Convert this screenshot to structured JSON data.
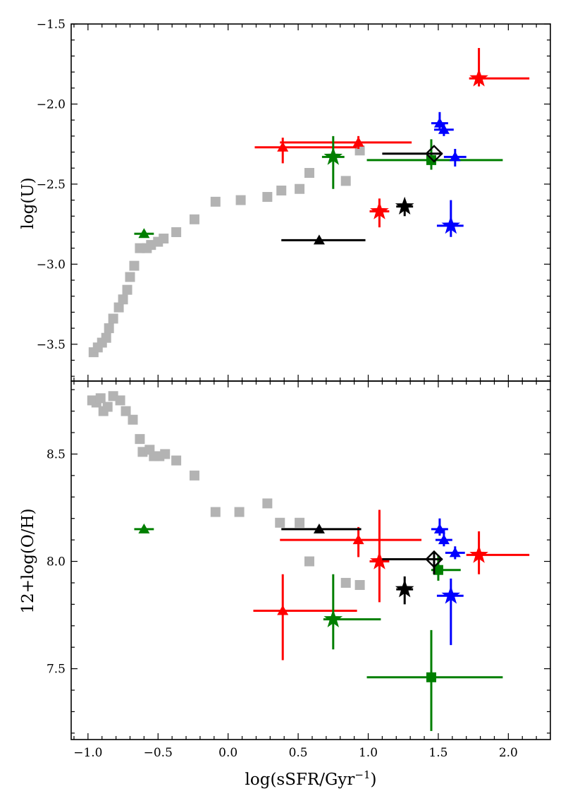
{
  "chart_data": [
    {
      "type": "scatter",
      "panel": "top",
      "title": "",
      "xlabel": "log(sSFR/Gyr^{-1})",
      "ylabel": "log(U)",
      "xlim": [
        -1.12,
        2.3
      ],
      "ylim": [
        -3.73,
        -1.5
      ],
      "x_ticks": [
        -1.0,
        -0.5,
        0.0,
        0.5,
        1.0,
        1.5,
        2.0
      ],
      "y_ticks": [
        -3.5,
        -3.0,
        -2.5,
        -2.0,
        -1.5
      ],
      "y_tick_labels": [
        "−3.5",
        "−3.0",
        "−2.5",
        "−2.0",
        "−1.5"
      ],
      "grid": false,
      "series": [
        {
          "name": "grey track",
          "color": "#b3b3b3",
          "marker": "square",
          "points": [
            {
              "x": -0.96,
              "y": -3.55
            },
            {
              "x": -0.93,
              "y": -3.52
            },
            {
              "x": -0.9,
              "y": -3.49
            },
            {
              "x": -0.87,
              "y": -3.46
            },
            {
              "x": -0.85,
              "y": -3.4
            },
            {
              "x": -0.82,
              "y": -3.34
            },
            {
              "x": -0.78,
              "y": -3.27
            },
            {
              "x": -0.75,
              "y": -3.22
            },
            {
              "x": -0.72,
              "y": -3.16
            },
            {
              "x": -0.7,
              "y": -3.08
            },
            {
              "x": -0.67,
              "y": -3.01
            },
            {
              "x": -0.63,
              "y": -2.9
            },
            {
              "x": -0.58,
              "y": -2.9
            },
            {
              "x": -0.55,
              "y": -2.88
            },
            {
              "x": -0.5,
              "y": -2.86
            },
            {
              "x": -0.46,
              "y": -2.84
            },
            {
              "x": -0.37,
              "y": -2.8
            },
            {
              "x": -0.24,
              "y": -2.72
            },
            {
              "x": -0.09,
              "y": -2.61
            },
            {
              "x": 0.09,
              "y": -2.6
            },
            {
              "x": 0.28,
              "y": -2.58
            },
            {
              "x": 0.38,
              "y": -2.54
            },
            {
              "x": 0.51,
              "y": -2.53
            },
            {
              "x": 0.58,
              "y": -2.43
            },
            {
              "x": 0.84,
              "y": -2.48
            },
            {
              "x": 0.94,
              "y": -2.29
            }
          ]
        },
        {
          "name": "red",
          "color": "#ff0000",
          "points": [
            {
              "marker": "triangle",
              "x": 0.39,
              "y": -2.27,
              "xerr": [
                0.2,
                0.53
              ],
              "yerr": [
                0.1,
                0.06
              ]
            },
            {
              "marker": "triangle",
              "x": 0.93,
              "y": -2.24,
              "xerr": [
                0.56,
                0.38
              ],
              "yerr": [
                0.04,
                0.04
              ]
            },
            {
              "marker": "star",
              "x": 1.08,
              "y": -2.67,
              "xerr": [
                0.07,
                0.07
              ],
              "yerr": [
                0.1,
                0.08
              ]
            },
            {
              "marker": "star",
              "x": 1.79,
              "y": -1.84,
              "xerr": [
                0.07,
                0.36
              ],
              "yerr": [
                0.05,
                0.19
              ]
            }
          ]
        },
        {
          "name": "green",
          "color": "#007f00",
          "points": [
            {
              "marker": "triangle",
              "x": -0.6,
              "y": -2.81,
              "xerr": [
                0.07,
                0.07
              ],
              "yerr": [
                0.0,
                0.0
              ]
            },
            {
              "marker": "star",
              "x": 0.75,
              "y": -2.33,
              "xerr": [
                0.08,
                0.08
              ],
              "yerr": [
                0.2,
                0.13
              ]
            },
            {
              "marker": "square",
              "x": 1.45,
              "y": -2.35,
              "xerr": [
                0.46,
                0.51
              ],
              "yerr": [
                0.06,
                0.13
              ]
            }
          ]
        },
        {
          "name": "blue",
          "color": "#0000ff",
          "points": [
            {
              "marker": "triangle",
              "x": 1.51,
              "y": -2.12,
              "xerr": [
                0.06,
                0.06
              ],
              "yerr": [
                0.04,
                0.07
              ]
            },
            {
              "marker": "triangle",
              "x": 1.54,
              "y": -2.16,
              "xerr": [
                0.07,
                0.07
              ],
              "yerr": [
                0.04,
                0.04
              ]
            },
            {
              "marker": "triangle",
              "x": 1.62,
              "y": -2.33,
              "xerr": [
                0.08,
                0.08
              ],
              "yerr": [
                0.06,
                0.05
              ]
            },
            {
              "marker": "star",
              "x": 1.59,
              "y": -2.76,
              "xerr": [
                0.1,
                0.09
              ],
              "yerr": [
                0.07,
                0.16
              ]
            }
          ]
        },
        {
          "name": "black",
          "color": "#000000",
          "points": [
            {
              "marker": "triangle",
              "x": 0.65,
              "y": -2.85,
              "xerr": [
                0.27,
                0.33
              ],
              "yerr": [
                0.0,
                0.0
              ]
            },
            {
              "marker": "star",
              "x": 1.26,
              "y": -2.64,
              "xerr": [
                0.06,
                0.06
              ],
              "yerr": [
                0.06,
                0.04
              ]
            },
            {
              "marker": "diamond-open",
              "x": 1.47,
              "y": -2.31,
              "xerr": [
                0.37,
                0.06
              ],
              "yerr": [
                0.0,
                0.0
              ]
            }
          ]
        }
      ]
    },
    {
      "type": "scatter",
      "panel": "bottom",
      "title": "",
      "xlabel": "log(sSFR/Gyr^{-1})",
      "ylabel": "12+log(O/H)",
      "xlim": [
        -1.12,
        2.3
      ],
      "ylim": [
        7.17,
        8.84
      ],
      "x_ticks": [
        -1.0,
        -0.5,
        0.0,
        0.5,
        1.0,
        1.5,
        2.0
      ],
      "x_tick_labels": [
        "−1.0",
        "−0.5",
        "0.0",
        "0.5",
        "1.0",
        "1.5",
        "2.0"
      ],
      "y_ticks": [
        7.5,
        8.0,
        8.5
      ],
      "y_tick_labels": [
        "7.5",
        "8.0",
        "8.5"
      ],
      "grid": false,
      "series": [
        {
          "name": "grey track",
          "color": "#b3b3b3",
          "marker": "square",
          "points": [
            {
              "x": -0.97,
              "y": 8.75
            },
            {
              "x": -0.94,
              "y": 8.74
            },
            {
              "x": -0.91,
              "y": 8.76
            },
            {
              "x": -0.89,
              "y": 8.7
            },
            {
              "x": -0.86,
              "y": 8.72
            },
            {
              "x": -0.82,
              "y": 8.77
            },
            {
              "x": -0.77,
              "y": 8.75
            },
            {
              "x": -0.73,
              "y": 8.7
            },
            {
              "x": -0.68,
              "y": 8.66
            },
            {
              "x": -0.63,
              "y": 8.57
            },
            {
              "x": -0.61,
              "y": 8.51
            },
            {
              "x": -0.56,
              "y": 8.52
            },
            {
              "x": -0.53,
              "y": 8.49
            },
            {
              "x": -0.49,
              "y": 8.49
            },
            {
              "x": -0.45,
              "y": 8.5
            },
            {
              "x": -0.37,
              "y": 8.47
            },
            {
              "x": -0.24,
              "y": 8.4
            },
            {
              "x": -0.09,
              "y": 8.23
            },
            {
              "x": 0.08,
              "y": 8.23
            },
            {
              "x": 0.28,
              "y": 8.27
            },
            {
              "x": 0.37,
              "y": 8.18
            },
            {
              "x": 0.51,
              "y": 8.18
            },
            {
              "x": 0.58,
              "y": 8.0
            },
            {
              "x": 0.84,
              "y": 7.9
            },
            {
              "x": 0.94,
              "y": 7.89
            }
          ]
        },
        {
          "name": "red",
          "color": "#ff0000",
          "points": [
            {
              "marker": "triangle",
              "x": 0.39,
              "y": 7.77,
              "xerr": [
                0.21,
                0.53
              ],
              "yerr": [
                0.23,
                0.17
              ]
            },
            {
              "marker": "triangle",
              "x": 0.93,
              "y": 8.1,
              "xerr": [
                0.56,
                0.45
              ],
              "yerr": [
                0.08,
                0.06
              ]
            },
            {
              "marker": "star",
              "x": 1.08,
              "y": 8.0,
              "xerr": [
                0.07,
                0.07
              ],
              "yerr": [
                0.19,
                0.24
              ]
            },
            {
              "marker": "star",
              "x": 1.79,
              "y": 8.03,
              "xerr": [
                0.09,
                0.36
              ],
              "yerr": [
                0.09,
                0.11
              ]
            }
          ]
        },
        {
          "name": "green",
          "color": "#007f00",
          "points": [
            {
              "marker": "triangle",
              "x": -0.6,
              "y": 8.15,
              "xerr": [
                0.07,
                0.07
              ],
              "yerr": [
                0.0,
                0.0
              ]
            },
            {
              "marker": "star",
              "x": 0.75,
              "y": 7.73,
              "xerr": [
                0.07,
                0.34
              ],
              "yerr": [
                0.14,
                0.21
              ]
            },
            {
              "marker": "square",
              "x": 1.5,
              "y": 7.96,
              "xerr": [
                0.05,
                0.16
              ],
              "yerr": [
                0.05,
                0.07
              ]
            },
            {
              "marker": "square",
              "x": 1.45,
              "y": 7.46,
              "xerr": [
                0.46,
                0.51
              ],
              "yerr": [
                0.25,
                0.22
              ]
            }
          ]
        },
        {
          "name": "blue",
          "color": "#0000ff",
          "points": [
            {
              "marker": "triangle",
              "x": 1.51,
              "y": 8.15,
              "xerr": [
                0.06,
                0.06
              ],
              "yerr": [
                0.03,
                0.05
              ]
            },
            {
              "marker": "triangle",
              "x": 1.54,
              "y": 8.1,
              "xerr": [
                0.06,
                0.06
              ],
              "yerr": [
                0.03,
                0.05
              ]
            },
            {
              "marker": "triangle",
              "x": 1.62,
              "y": 8.04,
              "xerr": [
                0.07,
                0.07
              ],
              "yerr": [
                0.03,
                0.03
              ]
            },
            {
              "marker": "star",
              "x": 1.59,
              "y": 7.84,
              "xerr": [
                0.1,
                0.09
              ],
              "yerr": [
                0.23,
                0.08
              ]
            }
          ]
        },
        {
          "name": "black",
          "color": "#000000",
          "points": [
            {
              "marker": "triangle",
              "x": 0.65,
              "y": 8.15,
              "xerr": [
                0.27,
                0.3
              ],
              "yerr": [
                0.0,
                0.0
              ]
            },
            {
              "marker": "star",
              "x": 1.26,
              "y": 7.87,
              "xerr": [
                0.06,
                0.06
              ],
              "yerr": [
                0.07,
                0.06
              ]
            },
            {
              "marker": "diamond-open",
              "x": 1.47,
              "y": 8.01,
              "xerr": [
                0.37,
                0.06
              ],
              "yerr": [
                0.07,
                0.03
              ]
            }
          ]
        }
      ]
    }
  ]
}
